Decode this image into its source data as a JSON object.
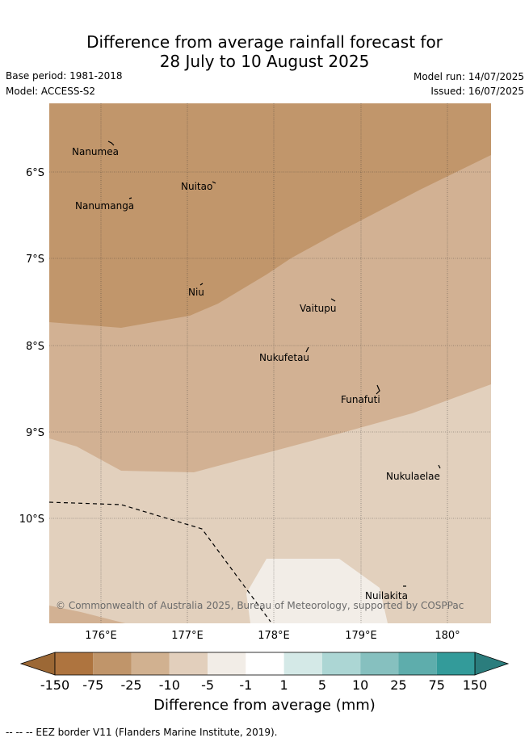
{
  "title": {
    "line1": "Difference from average rainfall forecast for",
    "line2": "28 July to 10 August 2025"
  },
  "meta": {
    "base_period": "Base period: 1981-2018",
    "model": "Model: ACCESS-S2",
    "model_run": "Model run: 14/07/2025",
    "issued": "Issued: 16/07/2025"
  },
  "map": {
    "lat_labels": [
      "6°S",
      "7°S",
      "8°S",
      "9°S",
      "10°S"
    ],
    "lon_labels": [
      "176°E",
      "177°E",
      "178°E",
      "179°E",
      "180°"
    ],
    "places": [
      "Nanumea",
      "Nuitao",
      "Nanumanga",
      "Niu",
      "Vaitupu",
      "Nukufetau",
      "Funafuti",
      "Nukulaelae",
      "Nuilakita"
    ],
    "copyright": "© Commonwealth of Australia 2025, Bureau of Meteorology, supported by COSPPac"
  },
  "colorbar": {
    "tick_labels": [
      "-150",
      "-75",
      "-25",
      "-10",
      "-5",
      "-1",
      "1",
      "5",
      "10",
      "25",
      "75",
      "150"
    ],
    "colors": [
      "#ae743f",
      "#c0956a",
      "#d1b190",
      "#e2cfbc",
      "#f2ede7",
      "#ffffff",
      "#d4e9e7",
      "#acd6d4",
      "#86c0bf",
      "#5eadac",
      "#339b9a"
    ],
    "extend_low_color": "#9c6835",
    "extend_high_color": "#2b7d7d",
    "title": "Difference from average (mm)"
  },
  "legend": {
    "eez": "-- -- -- EEZ border V11 (Flanders Marine Institute, 2019)."
  }
}
